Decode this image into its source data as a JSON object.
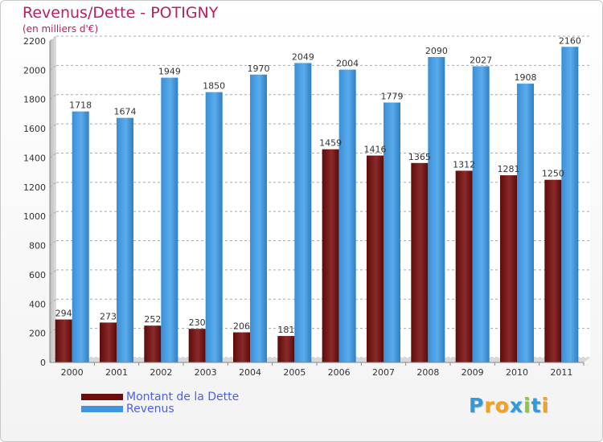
{
  "title": "Revenus/Dette - POTIGNY",
  "subtitle": "(en milliers d'€)",
  "colors": {
    "dette": "#7a1a1a",
    "revenus": "#3d95e0",
    "title": "#b8205e",
    "legend_text": "#4a5ff0"
  },
  "legend": [
    {
      "label": "Montant de la Dette",
      "color": "#6b0d0d"
    },
    {
      "label": "Revenus",
      "color": "#3d95e0"
    }
  ],
  "logo": {
    "text": "Proxiti",
    "letters": [
      {
        "ch": "P",
        "color": "#2f9bd8"
      },
      {
        "ch": "r",
        "color": "#f2a21b"
      },
      {
        "ch": "o",
        "color": "#f2a21b"
      },
      {
        "ch": "x",
        "color": "#2f9bd8"
      },
      {
        "ch": "i",
        "color": "#8cc63f"
      },
      {
        "ch": "t",
        "color": "#2f9bd8"
      },
      {
        "ch": "i",
        "color": "#f2a21b"
      }
    ]
  },
  "chart_data": {
    "type": "bar",
    "title": "Revenus/Dette - POTIGNY",
    "subtitle": "(en milliers d'€)",
    "categories": [
      "2000",
      "2001",
      "2002",
      "2003",
      "2004",
      "2005",
      "2006",
      "2007",
      "2008",
      "2009",
      "2010",
      "2011"
    ],
    "series": [
      {
        "name": "Montant de la Dette",
        "values": [
          294,
          273,
          252,
          230,
          206,
          181,
          1459,
          1416,
          1365,
          1312,
          1281,
          1250
        ],
        "labels": [
          "294",
          "273",
          "252",
          "230",
          "206",
          "181",
          "1459",
          "1416",
          "1365",
          "1312",
          "1281",
          "1250"
        ]
      },
      {
        "name": "Revenus",
        "values": [
          1718,
          1674,
          1949,
          1850,
          1970,
          2049,
          2004,
          1779,
          2090,
          2027,
          1908,
          2160
        ],
        "labels": [
          "1718",
          "1674",
          "1949",
          "1850",
          "1970",
          "2049",
          "2004",
          "1779",
          "2090",
          "2027",
          "1908",
          "2160"
        ]
      }
    ],
    "yticks": [
      "0",
      "200",
      "400",
      "600",
      "800",
      "1000",
      "1200",
      "1400",
      "1600",
      "1800",
      "2000",
      "2200"
    ],
    "ylim": [
      0,
      2200
    ],
    "grid": true,
    "legend_position": "bottom-left"
  }
}
